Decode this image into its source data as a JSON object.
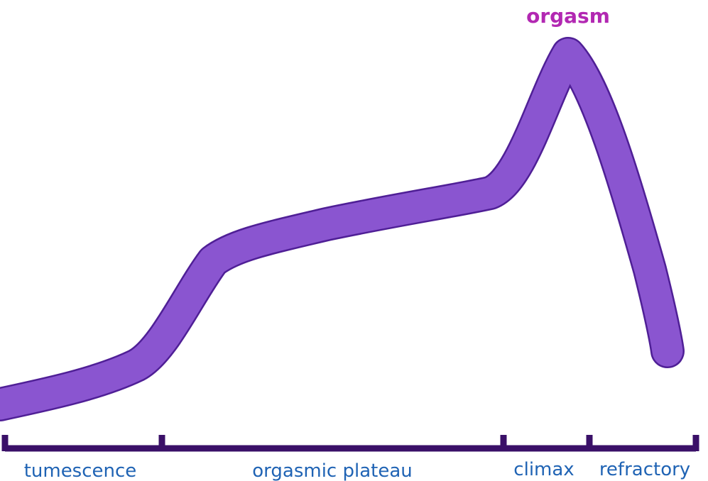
{
  "peak_label": "orgasm",
  "phases": [
    {
      "label": "tumescence"
    },
    {
      "label": "orgasmic plateau"
    },
    {
      "label": "climax"
    },
    {
      "label": "refractory"
    }
  ],
  "colors": {
    "curve_fill": "#8a55d0",
    "curve_outline": "#4f1f96",
    "axis": "#3a1068",
    "phase_text": "#1f63b4",
    "peak_text": "#b228b2",
    "background": "#ffffff"
  }
}
